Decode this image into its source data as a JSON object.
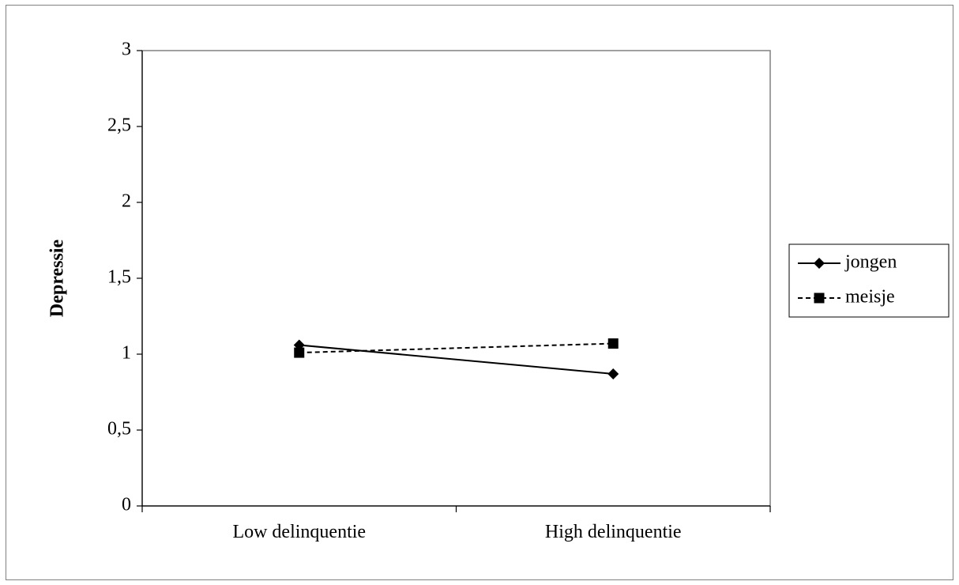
{
  "chart_data": {
    "type": "line",
    "title": "",
    "xlabel": "",
    "ylabel": "Depressie",
    "categories": [
      "Low delinquentie",
      "High delinquentie"
    ],
    "ylim": [
      0,
      3
    ],
    "yticks": [
      0,
      0.5,
      1,
      1.5,
      2,
      2.5,
      3
    ],
    "ytick_labels": [
      "0",
      "0,5",
      "1",
      "1,5",
      "2",
      "2,5",
      "3"
    ],
    "grid": false,
    "legend_position": "right",
    "series": [
      {
        "name": "jongen",
        "values": [
          1.06,
          0.87
        ],
        "marker": "diamond",
        "line": "solid",
        "color": "#000000"
      },
      {
        "name": "meisje",
        "values": [
          1.01,
          1.07
        ],
        "marker": "square",
        "line": "dashed",
        "color": "#000000"
      }
    ]
  }
}
